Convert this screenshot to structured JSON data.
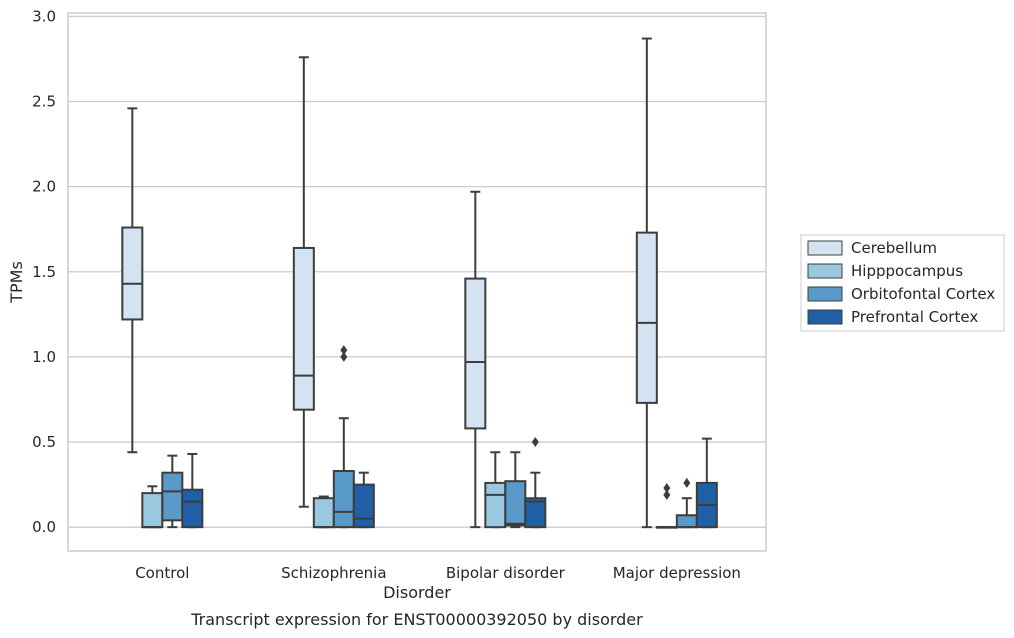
{
  "caption": "Transcript expression for ENST00000392050 by disorder",
  "chart_data": {
    "type": "box",
    "xlabel": "Disorder",
    "ylabel": "TPMs",
    "ylim": [
      -0.14,
      3.02
    ],
    "yticks": [
      "0.0",
      "0.5",
      "1.0",
      "1.5",
      "2.0",
      "2.5",
      "3.0"
    ],
    "ytick_values": [
      0,
      0.5,
      1.0,
      1.5,
      2.0,
      2.5,
      3.0
    ],
    "grid": "horizontal",
    "legend_position": "right",
    "categories": [
      "Control",
      "Schizophrenia",
      "Bipolar disorder",
      "Major depression"
    ],
    "series": [
      {
        "name": "Cerebellum",
        "color": "#d3e3f1",
        "boxes": [
          {
            "whisker_low": 0.44,
            "q1": 1.22,
            "median": 1.43,
            "q3": 1.76,
            "whisker_high": 2.46,
            "outliers": []
          },
          {
            "whisker_low": 0.12,
            "q1": 0.69,
            "median": 0.89,
            "q3": 1.64,
            "whisker_high": 2.76,
            "outliers": []
          },
          {
            "whisker_low": 0.0,
            "q1": 0.58,
            "median": 0.97,
            "q3": 1.46,
            "whisker_high": 1.97,
            "outliers": []
          },
          {
            "whisker_low": 0.0,
            "q1": 0.73,
            "median": 1.2,
            "q3": 1.73,
            "whisker_high": 2.87,
            "outliers": []
          }
        ]
      },
      {
        "name": "Hipppocampus",
        "color": "#9ac8e0",
        "boxes": [
          {
            "whisker_low": 0.0,
            "q1": 0.0,
            "median": 0.0,
            "q3": 0.2,
            "whisker_high": 0.24,
            "outliers": []
          },
          {
            "whisker_low": 0.0,
            "q1": 0.0,
            "median": 0.0,
            "q3": 0.17,
            "whisker_high": 0.18,
            "outliers": []
          },
          {
            "whisker_low": 0.0,
            "q1": 0.0,
            "median": 0.19,
            "q3": 0.26,
            "whisker_high": 0.44,
            "outliers": []
          },
          {
            "whisker_low": 0.0,
            "q1": 0.0,
            "median": 0.0,
            "q3": 0.0,
            "whisker_high": 0.0,
            "outliers": [
              0.19,
              0.23
            ]
          }
        ]
      },
      {
        "name": "Orbitofontal Cortex",
        "color": "#5a9ac8",
        "boxes": [
          {
            "whisker_low": 0.0,
            "q1": 0.04,
            "median": 0.21,
            "q3": 0.32,
            "whisker_high": 0.42,
            "outliers": []
          },
          {
            "whisker_low": 0.0,
            "q1": 0.0,
            "median": 0.09,
            "q3": 0.33,
            "whisker_high": 0.64,
            "outliers": [
              1.0,
              1.04
            ]
          },
          {
            "whisker_low": 0.0,
            "q1": 0.01,
            "median": 0.02,
            "q3": 0.27,
            "whisker_high": 0.44,
            "outliers": []
          },
          {
            "whisker_low": 0.0,
            "q1": 0.0,
            "median": 0.0,
            "q3": 0.07,
            "whisker_high": 0.17,
            "outliers": [
              0.26
            ]
          }
        ]
      },
      {
        "name": "Prefrontal Cortex",
        "color": "#2060a6",
        "boxes": [
          {
            "whisker_low": 0.0,
            "q1": 0.0,
            "median": 0.15,
            "q3": 0.22,
            "whisker_high": 0.43,
            "outliers": []
          },
          {
            "whisker_low": 0.0,
            "q1": 0.0,
            "median": 0.05,
            "q3": 0.25,
            "whisker_high": 0.32,
            "outliers": []
          },
          {
            "whisker_low": 0.0,
            "q1": 0.0,
            "median": 0.15,
            "q3": 0.17,
            "whisker_high": 0.32,
            "outliers": [
              0.5
            ]
          },
          {
            "whisker_low": 0.0,
            "q1": 0.0,
            "median": 0.13,
            "q3": 0.26,
            "whisker_high": 0.52,
            "outliers": []
          }
        ]
      }
    ]
  }
}
